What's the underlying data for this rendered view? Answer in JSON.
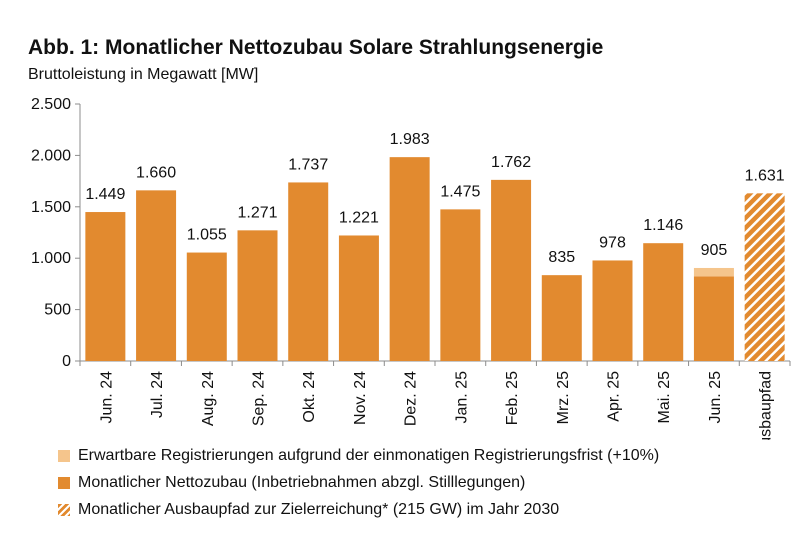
{
  "title": "Abb. 1: Monatlicher Nettozubau Solare Strahlungsenergie",
  "subtitle": "Bruttoleistung in Megawatt [MW]",
  "colors": {
    "main": "#e28a2f",
    "extra": "#f5c58c",
    "hatch": "#e28a2f"
  },
  "chart_data": {
    "type": "bar",
    "ylabel": "Bruttoleistung in Megawatt [MW]",
    "ylim": [
      0,
      2500
    ],
    "yticks": [
      0,
      500,
      1000,
      1500,
      2000,
      2500
    ],
    "ytick_labels": [
      "0",
      "500",
      "1.000",
      "1.500",
      "2.000",
      "2.500"
    ],
    "categories": [
      "Jun. 24",
      "Jul. 24",
      "Aug. 24",
      "Sep. 24",
      "Okt. 24",
      "Nov. 24",
      "Dez. 24",
      "Jan. 25",
      "Feb. 25",
      "Mrz. 25",
      "Apr. 25",
      "Mai. 25",
      "Jun. 25",
      "Ausbaupfad"
    ],
    "series": [
      {
        "name": "Monatlicher Nettozubau (Inbetriebnahmen abzgl. Stilllegungen)",
        "values": [
          1449,
          1660,
          1055,
          1271,
          1737,
          1221,
          1983,
          1475,
          1762,
          835,
          978,
          1146,
          823,
          null
        ]
      },
      {
        "name": "Erwartbare Registrierungen aufgrund der einmonatigen Registrierungsfrist (+10%)",
        "values": [
          null,
          null,
          null,
          null,
          null,
          null,
          null,
          null,
          null,
          null,
          null,
          null,
          82,
          null
        ]
      },
      {
        "name": "Monatlicher Ausbaupfad zur Zielerreichung* (215 GW) im Jahr 2030",
        "values": [
          null,
          null,
          null,
          null,
          null,
          null,
          null,
          null,
          null,
          null,
          null,
          null,
          null,
          1631
        ]
      }
    ],
    "data_labels": [
      "1.449",
      "1.660",
      "1.055",
      "1.271",
      "1.737",
      "1.221",
      "1.983",
      "1.475",
      "1.762",
      "835",
      "978",
      "1.146",
      "905",
      "1.631"
    ],
    "grid": false,
    "legend_position": "bottom"
  },
  "legend": [
    {
      "label": "Erwartbare Registrierungen aufgrund der einmonatigen Registrierungsfrist (+10%)",
      "swatch": "light"
    },
    {
      "label": "Monatlicher Nettozubau (Inbetriebnahmen abzgl. Stilllegungen)",
      "swatch": "main"
    },
    {
      "label": "Monatlicher Ausbaupfad zur Zielerreichung* (215 GW) im Jahr 2030",
      "swatch": "hatch"
    }
  ]
}
